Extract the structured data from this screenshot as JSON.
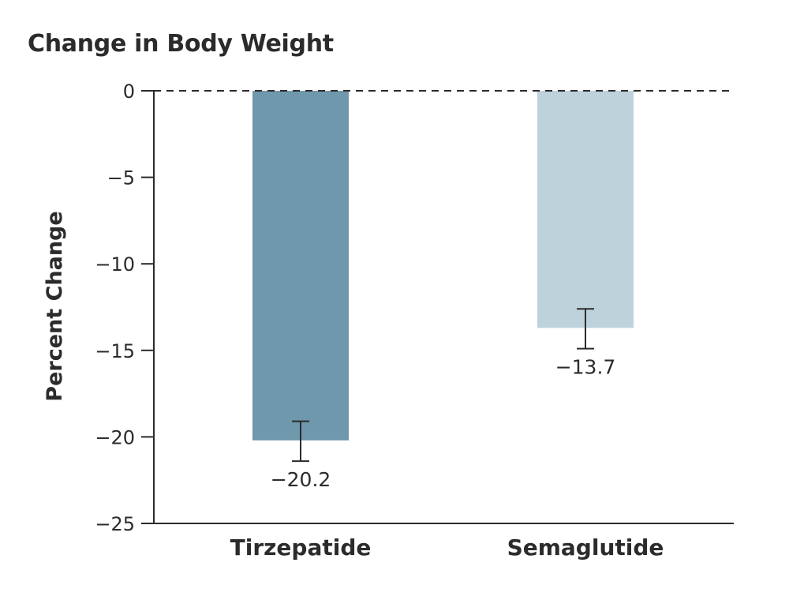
{
  "chart_data": {
    "type": "bar",
    "title": "Change in Body Weight",
    "ylabel": "Percent Change",
    "xlabel": "",
    "categories": [
      "Tirzepatide",
      "Semaglutide"
    ],
    "values": [
      -20.2,
      -13.7
    ],
    "value_labels": [
      "−20.2",
      "−13.7"
    ],
    "error_bars": [
      {
        "low": -21.4,
        "high": -19.1
      },
      {
        "low": -14.9,
        "high": -12.6
      }
    ],
    "ylim": [
      -25,
      0
    ],
    "yticks": [
      0,
      -5,
      -10,
      -15,
      -20,
      -25
    ],
    "ytick_labels": [
      "0",
      "−5",
      "−10",
      "−15",
      "−20",
      "−25"
    ],
    "zero_line": "dashed",
    "grid": false,
    "bar_colors": [
      "#6f98ad",
      "#bed2dc"
    ],
    "axis_color": "#2b2b2b"
  }
}
